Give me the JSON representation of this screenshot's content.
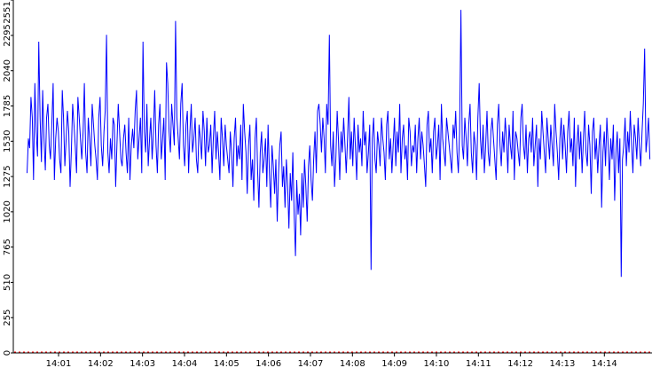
{
  "chart_data": {
    "type": "line",
    "title": "",
    "xlabel": "",
    "ylabel": "",
    "ylim": [
      0,
      2551
    ],
    "y_ticks": [
      "0",
      "255",
      "510",
      "765",
      "1020",
      "1275",
      "1530",
      "1785",
      "2040",
      "2295",
      "2551"
    ],
    "x_ticks": [
      "14:01",
      "14:02",
      "14:03",
      "14:04",
      "14:05",
      "14:06",
      "14:07",
      "14:08",
      "14:09",
      "14:10",
      "14:11",
      "14:12",
      "14:13",
      "14:14"
    ],
    "grid": false,
    "legend": "none",
    "series": [
      {
        "color": "#0000ff",
        "x_start": "14:00:15",
        "x_end": "14:15:05",
        "values": [
          1300,
          1550,
          1480,
          1850,
          1700,
          1250,
          1950,
          1600,
          1420,
          2250,
          1700,
          1380,
          1900,
          1550,
          1320,
          1700,
          1800,
          1500,
          1400,
          1650,
          1950,
          1250,
          1550,
          1700,
          1600,
          1400,
          1300,
          1900,
          1700,
          1350,
          1550,
          1750,
          1600,
          1200,
          1450,
          1800,
          1650,
          1500,
          1300,
          1850,
          1700,
          1550,
          1400,
          1600,
          1950,
          1450,
          1300,
          1700,
          1550,
          1350,
          1800,
          1650,
          1500,
          1400,
          1250,
          1700,
          1850,
          1500,
          1350,
          1600,
          1750,
          2300,
          1450,
          1300,
          1550,
          1400,
          1700,
          1650,
          1200,
          1500,
          1800,
          1600,
          1400,
          1350,
          1550,
          1650,
          1450,
          1300,
          1700,
          1250,
          1500,
          1620,
          1480,
          1750,
          1900,
          1400,
          1550,
          1700,
          1300,
          2250,
          1600,
          1450,
          1800,
          1350,
          1550,
          1700,
          1400,
          1600,
          1900,
          1500,
          1300,
          1650,
          1800,
          1400,
          1550,
          1700,
          1250,
          2100,
          1950,
          1600,
          1450,
          1800,
          1650,
          1500,
          2400,
          1700,
          1550,
          1400,
          1800,
          1950,
          1500,
          1350,
          1650,
          1750,
          1300,
          1600,
          1800,
          1450,
          1550,
          1700,
          1400,
          1300,
          1650,
          1550,
          1400,
          1750,
          1600,
          1350,
          1700,
          1450,
          1500,
          1650,
          1300,
          1550,
          1750,
          1400,
          1600,
          1450,
          1250,
          1700,
          1550,
          1350,
          1650,
          1500,
          1400,
          1300,
          1600,
          1450,
          1200,
          1550,
          1700,
          1350,
          1500,
          1400,
          1650,
          1250,
          1800,
          1600,
          1450,
          1150,
          1500,
          1650,
          1250,
          1400,
          1100,
          1550,
          1700,
          1300,
          1050,
          1450,
          1600,
          1300,
          1400,
          1550,
          1200,
          1650,
          1300,
          1050,
          1500,
          1350,
          1150,
          1400,
          950,
          1300,
          1500,
          1600,
          1200,
          1350,
          1050,
          1400,
          1200,
          900,
          1300,
          1100,
          1450,
          1000,
          700,
          1250,
          1000,
          1150,
          850,
          1300,
          1050,
          1400,
          1200,
          950,
          1350,
          1500,
          1250,
          1100,
          1400,
          1600,
          1300,
          1750,
          1800,
          1650,
          1450,
          1700,
          1550,
          1300,
          1800,
          1650,
          2300,
          1500,
          1350,
          1600,
          1200,
          1400,
          1750,
          1550,
          1250,
          1600,
          1450,
          1700,
          1500,
          1300,
          1550,
          1850,
          1400,
          1600,
          1350,
          1700,
          1500,
          1250,
          1650,
          1450,
          1550,
          1350,
          1750,
          1500,
          1600,
          1300,
          1450,
          1650,
          600,
          1550,
          1700,
          1400,
          1300,
          1600,
          1500,
          1350,
          1700,
          1550,
          1450,
          1250,
          1650,
          1750,
          1400,
          1550,
          1300,
          1500,
          1700,
          1350,
          1600,
          1450,
          1800,
          1300,
          1550,
          1650,
          1400,
          1500,
          1250,
          1700,
          1600,
          1350,
          1500,
          1450,
          1650,
          1300,
          1550,
          1700,
          1400,
          1600,
          1500,
          1350,
          1200,
          1650,
          1750,
          1450,
          1550,
          1300,
          1600,
          1700,
          1400,
          1500,
          1650,
          1250,
          1800,
          1550,
          1450,
          1350,
          1700,
          1600,
          1500,
          1400,
          1300,
          1650,
          1550,
          1750,
          1450,
          1300,
          1600,
          2480,
          1500,
          1400,
          1700,
          1550,
          1350,
          1650,
          1800,
          1450,
          1300,
          1600,
          1500,
          1250,
          1700,
          1950,
          1550,
          1400,
          1650,
          1300,
          1500,
          1750,
          1450,
          1350,
          1600,
          1700,
          1550,
          1400,
          1250,
          1650,
          1800,
          1500,
          1350,
          1600,
          1450,
          1700,
          1550,
          1300,
          1650,
          1500,
          1400,
          1750,
          1250,
          1600,
          1550,
          1450,
          1350,
          1700,
          1800,
          1500,
          1400,
          1650,
          1300,
          1550,
          1600,
          1450,
          1700,
          1350,
          1500,
          1650,
          1200,
          1550,
          1400,
          1750,
          1600,
          1450,
          1300,
          1700,
          1550,
          1400,
          1650,
          1500,
          1350,
          1800,
          1600,
          1450,
          1250,
          1550,
          1700,
          1400,
          1650,
          1500,
          1300,
          1600,
          1750,
          1450,
          1550,
          1350,
          1700,
          1200,
          1500,
          1650,
          1400,
          1600,
          1300,
          1550,
          1750,
          1450,
          1350,
          1650,
          1500,
          1150,
          1600,
          1700,
          1400,
          1550,
          1300,
          1500,
          1650,
          1050,
          1450,
          1600,
          1350,
          1700,
          1500,
          1250,
          1550,
          1400,
          1650,
          1100,
          1450,
          1600,
          1300,
          1550,
          550,
          1400,
          1500,
          1700,
          1350,
          1600,
          1450,
          1750,
          1500,
          1300,
          1650,
          1550,
          1400,
          1700,
          1500,
          1350,
          1600,
          1800,
          2200,
          1450,
          1550,
          1700,
          1400
        ]
      }
    ]
  }
}
